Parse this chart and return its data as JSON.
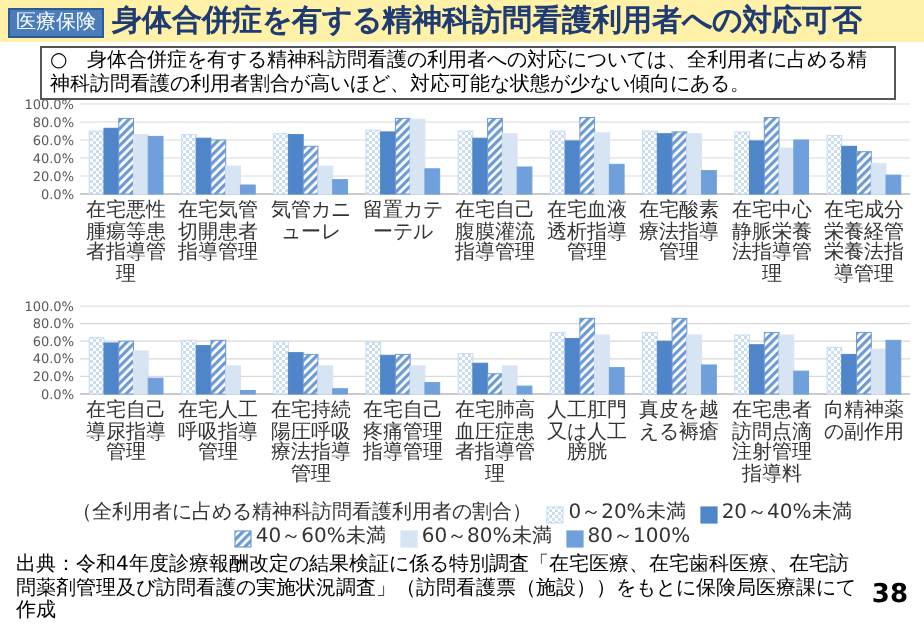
{
  "chart_data": [
    {
      "type": "bar",
      "title": "身体合併症を有する精神科訪問看護利用者への対応可否",
      "subtitle": "○　身体合併症を有する精神科訪問看護の利用者への対応については、全利用者に占める精神科訪問看護の利用者割合が高いほど、対応可能な状態が少ない傾向にある。",
      "annotations": [
        "医療保険",
        "出典：令和4年度診療報酬改定の結果検証に係る特別調査「在宅医療、在宅歯科医療、在宅訪問薬剤管理及び訪問看護の実施状況調査」（訪問看護票（施設））をもとに保険局医療課にて作成",
        "38"
      ],
      "categories": [
        "在宅悪性腫瘍等患者指導管理",
        "在宅気管切開患者指導管理",
        "気管カニューレ",
        "留置カテーテル",
        "在宅自己腹膜灌流指導管理",
        "在宅血液透析指導管理",
        "在宅酸素療法指導管理",
        "在宅中心静脈栄養法指導管理",
        "在宅成分栄養経管栄養法指導管理"
      ],
      "series": [
        {
          "color": "#c9dcf2",
          "values": [
            70,
            66,
            67,
            71,
            70,
            70,
            70,
            69,
            65
          ]
        },
        {
          "color": "#4f86c9",
          "values": [
            73,
            62,
            66,
            69,
            62,
            59,
            67,
            59,
            53
          ]
        },
        {
          "color": "#6d9ad4",
          "values": [
            84,
            60,
            53,
            84,
            84,
            85,
            69,
            85,
            47
          ]
        },
        {
          "color": "#d6e4f4",
          "values": [
            66,
            31,
            31,
            83,
            67,
            68,
            67,
            51,
            34
          ]
        },
        {
          "color": "#6fa0dc",
          "values": [
            64,
            10,
            16,
            28,
            30,
            33,
            26,
            60,
            21
          ]
        }
      ],
      "ylim": [
        0,
        100
      ],
      "yticks": [
        {
          "value": 0,
          "label": "0.0%"
        },
        {
          "value": 20,
          "label": "20.0%"
        },
        {
          "value": 40,
          "label": "40.0%"
        },
        {
          "value": 60,
          "label": "60.0%"
        },
        {
          "value": 80,
          "label": "80.0%"
        },
        {
          "value": 100,
          "label": "100.0%"
        }
      ],
      "grid": "y",
      "legend": false
    },
    {
      "type": "bar",
      "legend_title": "（全利用者に占める精神科訪問看護利用者の割合）",
      "categories": [
        "在宅自己導尿指導管理",
        "在宅人工呼吸指導管理",
        "在宅持続陽圧呼吸療法指導管理",
        "在宅自己疼痛管理指導管理",
        "在宅肺高血圧症患者指導管理",
        "人工肛門又は人工膀胱",
        "真皮を越える褥瘡",
        "在宅患者訪問点滴注射管理指導料",
        "向精神薬の副作用"
      ],
      "series": [
        {
          "name": "0～20%未満",
          "color": "#c9dcf2",
          "values": [
            64,
            61,
            60,
            59,
            46,
            70,
            70,
            67,
            53
          ]
        },
        {
          "name": "20～40%未満",
          "color": "#4f86c9",
          "values": [
            58,
            55,
            47,
            44,
            35,
            63,
            60,
            56,
            45
          ]
        },
        {
          "name": "40～60%未満",
          "color": "#6d9ad4",
          "values": [
            60,
            61,
            45,
            45,
            23,
            86,
            86,
            70,
            70
          ]
        },
        {
          "name": "60～80%未満",
          "color": "#d6e4f4",
          "values": [
            49,
            32,
            32,
            32,
            32,
            67,
            67,
            67,
            51
          ]
        },
        {
          "name": "80～100%",
          "color": "#6fa0dc",
          "values": [
            18,
            4,
            6,
            13,
            9,
            30,
            33,
            26,
            61
          ]
        }
      ],
      "ylim": [
        0,
        100
      ],
      "yticks": [
        {
          "value": 0,
          "label": "0.0%"
        },
        {
          "value": 20,
          "label": "20.0%"
        },
        {
          "value": 40,
          "label": "40.0%"
        },
        {
          "value": 60,
          "label": "60.0%"
        },
        {
          "value": 80,
          "label": "80.0%"
        },
        {
          "value": 100,
          "label": "100.0%"
        }
      ],
      "grid": "y",
      "legend": "bottom"
    }
  ]
}
